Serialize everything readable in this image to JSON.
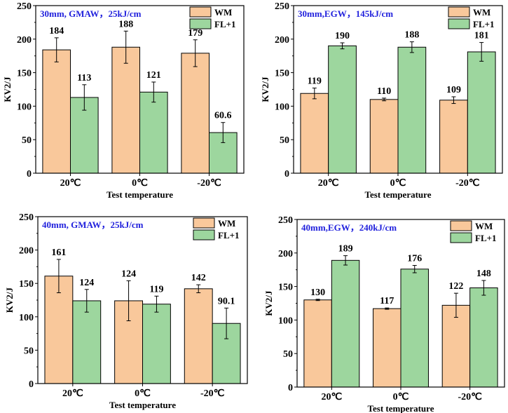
{
  "colors": {
    "WM": "#f9c89b",
    "FL+1": "#9dd69e",
    "title": "#2222dd",
    "axis": "#000000"
  },
  "chart_data": [
    {
      "type": "bar",
      "title": "30mm, GMAW，25kJ/cm",
      "xlabel": "Test temperature",
      "ylabel": "KV2/J",
      "ylim": [
        0,
        250
      ],
      "yticks": [
        "0",
        "50",
        "100",
        "150",
        "200",
        "250"
      ],
      "categories": [
        "20℃",
        "0℃",
        "-20℃"
      ],
      "legend": "top-right",
      "grid": false,
      "series": [
        {
          "name": "WM",
          "values": [
            184,
            188,
            179
          ],
          "errors": [
            18,
            24,
            20
          ],
          "labels": [
            "184",
            "188",
            "179"
          ]
        },
        {
          "name": "FL+1",
          "values": [
            113,
            121,
            60.6
          ],
          "errors": [
            19,
            15,
            15
          ],
          "labels": [
            "113",
            "121",
            "60.6"
          ]
        }
      ]
    },
    {
      "type": "bar",
      "title": "30mm,EGW，145kJ/cm",
      "xlabel": "Test temperature",
      "ylabel": "KV2/J",
      "ylim": [
        0,
        250
      ],
      "yticks": [
        "0",
        "50",
        "100",
        "150",
        "200",
        "250"
      ],
      "categories": [
        "20℃",
        "0℃",
        "-20℃"
      ],
      "legend": "top-right",
      "grid": false,
      "series": [
        {
          "name": "WM",
          "values": [
            119,
            110,
            109
          ],
          "errors": [
            8,
            2,
            5
          ],
          "labels": [
            "119",
            "110",
            "109"
          ]
        },
        {
          "name": "FL+1",
          "values": [
            190,
            188,
            181
          ],
          "errors": [
            4.5,
            8,
            14
          ],
          "labels": [
            "190",
            "188",
            "181"
          ]
        }
      ]
    },
    {
      "type": "bar",
      "title": "40mm, GMAW，25kJ/cm",
      "xlabel": "Test temperature",
      "ylabel": "KV2/J",
      "ylim": [
        0,
        250
      ],
      "yticks": [
        "0",
        "50",
        "100",
        "150",
        "200",
        "250"
      ],
      "categories": [
        "20℃",
        "0℃",
        "-20℃"
      ],
      "legend": "top-right",
      "grid": false,
      "series": [
        {
          "name": "WM",
          "values": [
            161,
            124,
            142
          ],
          "errors": [
            25,
            30,
            6
          ],
          "labels": [
            "161",
            "124",
            "142"
          ]
        },
        {
          "name": "FL+1",
          "values": [
            124,
            119,
            90.1
          ],
          "errors": [
            17,
            12,
            23
          ],
          "labels": [
            "124",
            "119",
            "90.1"
          ]
        }
      ]
    },
    {
      "type": "bar",
      "title": "40mm,EGW，240kJ/cm",
      "xlabel": "Test temperature",
      "ylabel": "KV2/J",
      "ylim": [
        0,
        250
      ],
      "yticks": [
        "0",
        "50",
        "100",
        "150",
        "200",
        "250"
      ],
      "categories": [
        "20℃",
        "0℃",
        "-20℃"
      ],
      "legend": "top-right",
      "grid": false,
      "series": [
        {
          "name": "WM",
          "values": [
            130,
            117,
            122
          ],
          "errors": [
            1,
            1,
            18
          ],
          "labels": [
            "130",
            "117",
            "122"
          ]
        },
        {
          "name": "FL+1",
          "values": [
            189,
            176,
            148
          ],
          "errors": [
            7,
            5.5,
            11
          ],
          "labels": [
            "189",
            "176",
            "148"
          ]
        }
      ]
    }
  ]
}
